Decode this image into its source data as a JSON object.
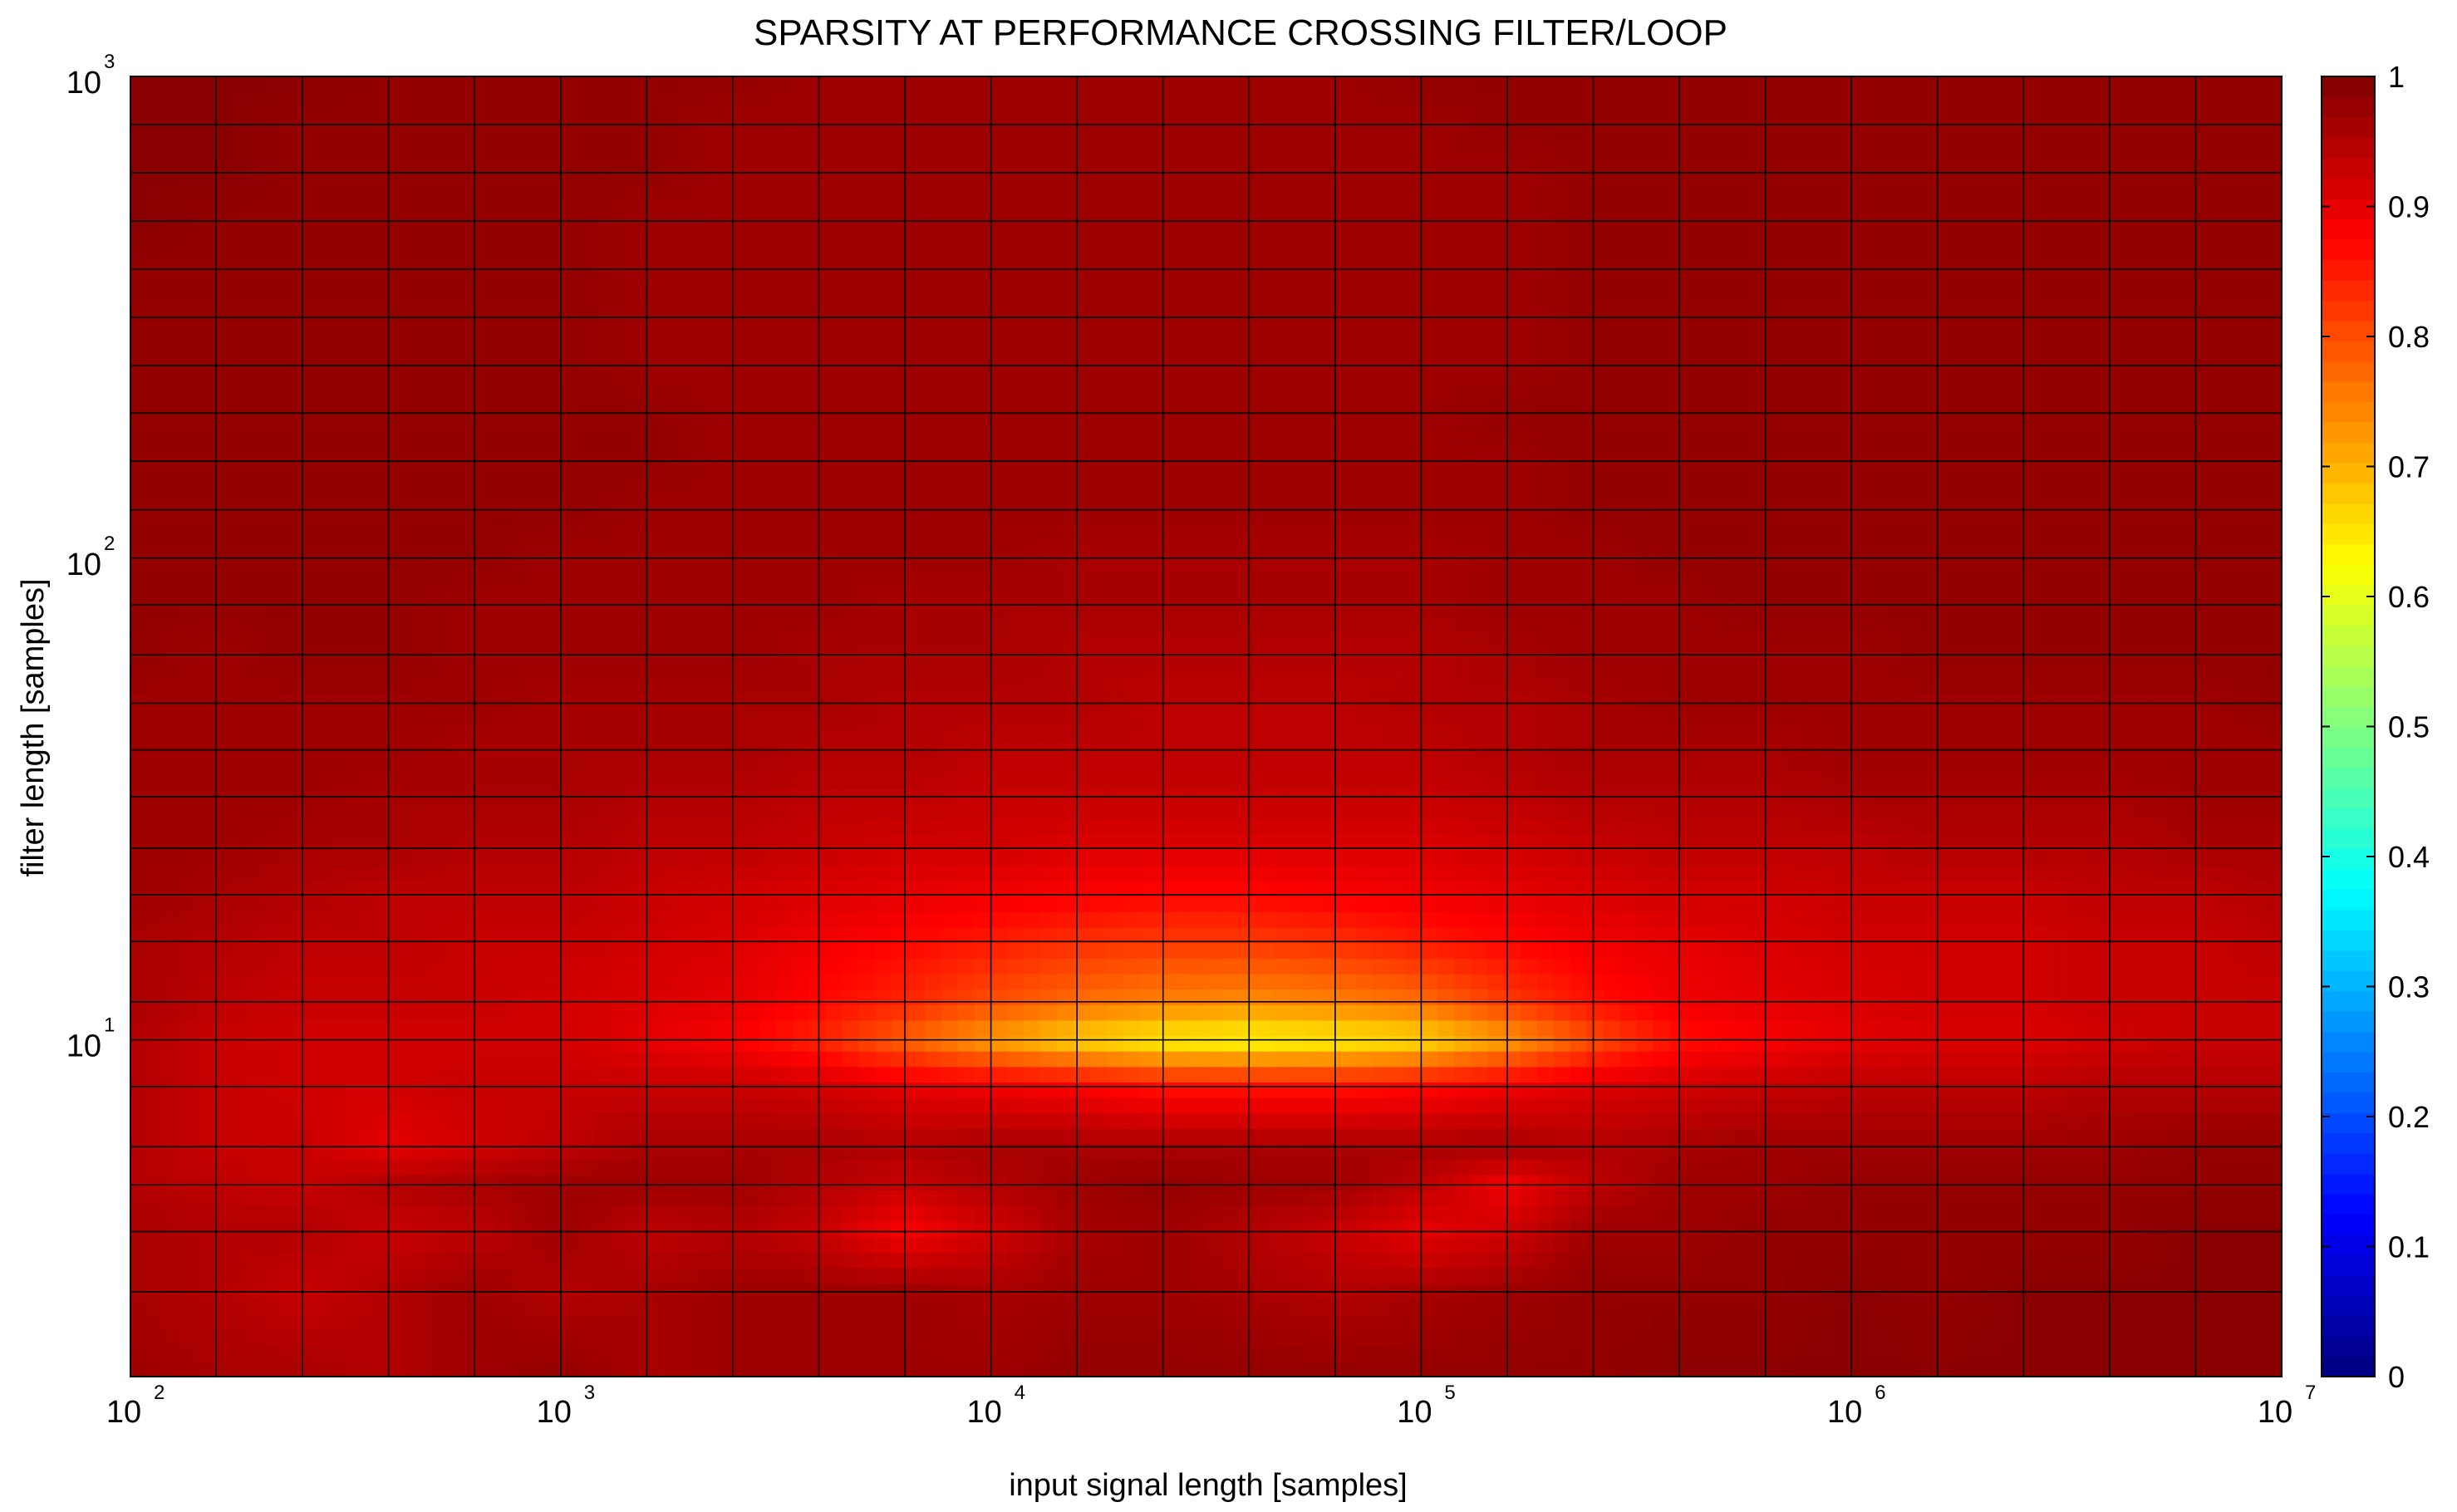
{
  "chart_data": {
    "type": "heatmap",
    "title": "SPARSITY AT PERFORMANCE CROSSING FILTER/LOOP",
    "xlabel": "input signal length [samples]",
    "ylabel": "filter length [samples]",
    "x_scale": "log",
    "y_scale": "log",
    "xlim": [
      100,
      10000000
    ],
    "ylim": [
      2,
      1000
    ],
    "grid": true,
    "colormap": "jet",
    "colorbar": {
      "placement": "right",
      "range": [
        0,
        1
      ],
      "ticks": [
        "0",
        "0.1",
        "0.2",
        "0.3",
        "0.4",
        "0.5",
        "0.6",
        "0.7",
        "0.8",
        "0.9",
        "1"
      ]
    },
    "x_ticks": [
      {
        "base": "10",
        "exp": "2"
      },
      {
        "base": "10",
        "exp": "3"
      },
      {
        "base": "10",
        "exp": "4"
      },
      {
        "base": "10",
        "exp": "5"
      },
      {
        "base": "10",
        "exp": "6"
      },
      {
        "base": "10",
        "exp": "7"
      }
    ],
    "y_ticks": [
      {
        "base": "10",
        "exp": "1",
        "value": 10
      },
      {
        "base": "10",
        "exp": "2",
        "value": 100
      },
      {
        "base": "10",
        "exp": "3",
        "value": 1000
      }
    ],
    "x": [
      100,
      158,
      251,
      398,
      631,
      1000,
      1585,
      2512,
      3981,
      6310,
      10000,
      15849,
      25119,
      39811,
      63096,
      100000,
      158489,
      251189,
      398107,
      630957,
      1000000,
      1584893,
      2511886,
      3981072,
      6309573,
      10000000
    ],
    "y": [
      2,
      3,
      4,
      5,
      6,
      8,
      10,
      12,
      16,
      20,
      25,
      32,
      40,
      50,
      63,
      80,
      100,
      126,
      159,
      200,
      251,
      316,
      398,
      501,
      631,
      794,
      1000
    ],
    "z": [
      [
        0.97,
        0.96,
        0.96,
        0.95,
        0.97,
        0.98,
        0.96,
        0.97,
        0.97,
        0.97,
        0.97,
        0.98,
        0.98,
        0.98,
        0.98,
        0.98,
        0.98,
        0.98,
        0.99,
        0.99,
        0.99,
        0.99,
        0.99,
        0.99,
        0.99,
        0.99
      ],
      [
        0.96,
        0.95,
        0.93,
        0.95,
        0.97,
        0.95,
        0.96,
        0.97,
        0.97,
        0.97,
        0.96,
        0.97,
        0.97,
        0.96,
        0.95,
        0.96,
        0.97,
        0.98,
        0.98,
        0.98,
        0.99,
        0.98,
        0.99,
        0.99,
        0.99,
        0.99
      ],
      [
        0.96,
        0.95,
        0.95,
        0.93,
        0.94,
        0.97,
        0.94,
        0.95,
        0.93,
        0.88,
        0.92,
        0.96,
        0.97,
        0.95,
        0.93,
        0.9,
        0.92,
        0.97,
        0.97,
        0.98,
        0.98,
        0.98,
        0.98,
        0.98,
        0.99,
        0.99
      ],
      [
        0.95,
        0.94,
        0.93,
        0.95,
        0.96,
        0.97,
        0.97,
        0.97,
        0.95,
        0.93,
        0.95,
        0.97,
        0.98,
        0.97,
        0.97,
        0.94,
        0.89,
        0.94,
        0.97,
        0.97,
        0.98,
        0.98,
        0.98,
        0.98,
        0.98,
        0.98
      ],
      [
        0.95,
        0.93,
        0.93,
        0.9,
        0.92,
        0.94,
        0.96,
        0.96,
        0.96,
        0.95,
        0.96,
        0.96,
        0.96,
        0.96,
        0.96,
        0.96,
        0.96,
        0.95,
        0.96,
        0.97,
        0.97,
        0.97,
        0.97,
        0.97,
        0.98,
        0.98
      ],
      [
        0.95,
        0.93,
        0.92,
        0.92,
        0.93,
        0.93,
        0.93,
        0.93,
        0.92,
        0.9,
        0.89,
        0.88,
        0.86,
        0.86,
        0.86,
        0.87,
        0.89,
        0.91,
        0.92,
        0.93,
        0.94,
        0.94,
        0.94,
        0.95,
        0.95,
        0.95
      ],
      [
        0.95,
        0.93,
        0.92,
        0.92,
        0.92,
        0.92,
        0.9,
        0.88,
        0.84,
        0.78,
        0.72,
        0.67,
        0.64,
        0.63,
        0.64,
        0.66,
        0.72,
        0.8,
        0.86,
        0.88,
        0.9,
        0.91,
        0.91,
        0.92,
        0.93,
        0.93
      ],
      [
        0.96,
        0.94,
        0.93,
        0.93,
        0.93,
        0.92,
        0.91,
        0.9,
        0.87,
        0.84,
        0.8,
        0.77,
        0.75,
        0.74,
        0.75,
        0.77,
        0.82,
        0.86,
        0.89,
        0.9,
        0.91,
        0.92,
        0.92,
        0.93,
        0.93,
        0.93
      ],
      [
        0.96,
        0.95,
        0.94,
        0.94,
        0.93,
        0.93,
        0.92,
        0.91,
        0.89,
        0.87,
        0.85,
        0.83,
        0.82,
        0.82,
        0.83,
        0.85,
        0.87,
        0.89,
        0.9,
        0.91,
        0.92,
        0.92,
        0.92,
        0.93,
        0.93,
        0.94
      ],
      [
        0.97,
        0.96,
        0.95,
        0.94,
        0.94,
        0.94,
        0.93,
        0.92,
        0.91,
        0.9,
        0.89,
        0.88,
        0.87,
        0.87,
        0.88,
        0.89,
        0.9,
        0.91,
        0.92,
        0.92,
        0.93,
        0.93,
        0.93,
        0.94,
        0.94,
        0.95
      ],
      [
        0.97,
        0.97,
        0.96,
        0.96,
        0.95,
        0.95,
        0.94,
        0.94,
        0.93,
        0.92,
        0.92,
        0.91,
        0.91,
        0.91,
        0.91,
        0.91,
        0.92,
        0.93,
        0.94,
        0.94,
        0.94,
        0.95,
        0.95,
        0.95,
        0.96,
        0.96
      ],
      [
        0.97,
        0.97,
        0.97,
        0.96,
        0.96,
        0.96,
        0.95,
        0.95,
        0.94,
        0.94,
        0.93,
        0.93,
        0.93,
        0.93,
        0.93,
        0.93,
        0.94,
        0.95,
        0.95,
        0.95,
        0.96,
        0.96,
        0.96,
        0.96,
        0.97,
        0.97
      ],
      [
        0.97,
        0.97,
        0.97,
        0.97,
        0.96,
        0.96,
        0.96,
        0.96,
        0.95,
        0.95,
        0.94,
        0.94,
        0.94,
        0.94,
        0.94,
        0.94,
        0.95,
        0.96,
        0.96,
        0.96,
        0.97,
        0.97,
        0.97,
        0.97,
        0.97,
        0.97
      ],
      [
        0.97,
        0.97,
        0.97,
        0.97,
        0.97,
        0.96,
        0.96,
        0.96,
        0.96,
        0.95,
        0.95,
        0.95,
        0.94,
        0.94,
        0.94,
        0.95,
        0.95,
        0.96,
        0.97,
        0.97,
        0.97,
        0.97,
        0.97,
        0.97,
        0.97,
        0.98
      ],
      [
        0.98,
        0.97,
        0.98,
        0.98,
        0.97,
        0.97,
        0.97,
        0.97,
        0.96,
        0.96,
        0.96,
        0.95,
        0.95,
        0.95,
        0.95,
        0.95,
        0.96,
        0.97,
        0.97,
        0.97,
        0.97,
        0.98,
        0.98,
        0.98,
        0.98,
        0.98
      ],
      [
        0.98,
        0.98,
        0.98,
        0.98,
        0.97,
        0.97,
        0.97,
        0.97,
        0.97,
        0.96,
        0.96,
        0.96,
        0.96,
        0.96,
        0.96,
        0.96,
        0.97,
        0.97,
        0.97,
        0.98,
        0.98,
        0.98,
        0.98,
        0.98,
        0.98,
        0.98
      ],
      [
        0.98,
        0.98,
        0.98,
        0.98,
        0.98,
        0.97,
        0.97,
        0.97,
        0.97,
        0.97,
        0.97,
        0.96,
        0.96,
        0.96,
        0.96,
        0.96,
        0.97,
        0.97,
        0.98,
        0.98,
        0.98,
        0.98,
        0.98,
        0.98,
        0.98,
        0.98
      ],
      [
        0.98,
        0.98,
        0.98,
        0.98,
        0.98,
        0.98,
        0.97,
        0.97,
        0.97,
        0.97,
        0.97,
        0.97,
        0.97,
        0.97,
        0.97,
        0.97,
        0.97,
        0.98,
        0.98,
        0.98,
        0.98,
        0.98,
        0.98,
        0.98,
        0.98,
        0.98
      ],
      [
        0.98,
        0.98,
        0.98,
        0.98,
        0.98,
        0.98,
        0.98,
        0.97,
        0.97,
        0.97,
        0.97,
        0.97,
        0.97,
        0.97,
        0.97,
        0.97,
        0.97,
        0.98,
        0.98,
        0.98,
        0.98,
        0.98,
        0.98,
        0.98,
        0.98,
        0.98
      ],
      [
        0.98,
        0.98,
        0.98,
        0.98,
        0.98,
        0.98,
        0.98,
        0.97,
        0.97,
        0.97,
        0.97,
        0.97,
        0.97,
        0.97,
        0.97,
        0.97,
        0.98,
        0.98,
        0.98,
        0.98,
        0.98,
        0.98,
        0.98,
        0.98,
        0.98,
        0.98
      ],
      [
        0.98,
        0.98,
        0.98,
        0.98,
        0.98,
        0.98,
        0.97,
        0.97,
        0.97,
        0.97,
        0.97,
        0.97,
        0.97,
        0.97,
        0.97,
        0.97,
        0.97,
        0.98,
        0.98,
        0.98,
        0.98,
        0.98,
        0.98,
        0.98,
        0.98,
        0.98
      ],
      [
        0.98,
        0.98,
        0.98,
        0.98,
        0.98,
        0.98,
        0.97,
        0.97,
        0.97,
        0.97,
        0.97,
        0.97,
        0.97,
        0.97,
        0.97,
        0.97,
        0.97,
        0.98,
        0.98,
        0.98,
        0.98,
        0.98,
        0.98,
        0.98,
        0.98,
        0.98
      ],
      [
        0.98,
        0.98,
        0.98,
        0.98,
        0.98,
        0.98,
        0.97,
        0.97,
        0.97,
        0.97,
        0.97,
        0.97,
        0.97,
        0.97,
        0.97,
        0.97,
        0.97,
        0.98,
        0.98,
        0.98,
        0.98,
        0.98,
        0.98,
        0.98,
        0.98,
        0.98
      ],
      [
        0.99,
        0.98,
        0.98,
        0.98,
        0.98,
        0.98,
        0.97,
        0.97,
        0.97,
        0.97,
        0.97,
        0.97,
        0.97,
        0.97,
        0.97,
        0.97,
        0.97,
        0.98,
        0.98,
        0.98,
        0.98,
        0.98,
        0.98,
        0.98,
        0.98,
        0.98
      ],
      [
        0.99,
        0.99,
        0.98,
        0.98,
        0.98,
        0.98,
        0.98,
        0.97,
        0.97,
        0.97,
        0.97,
        0.97,
        0.97,
        0.97,
        0.97,
        0.97,
        0.97,
        0.98,
        0.98,
        0.98,
        0.98,
        0.98,
        0.98,
        0.98,
        0.98,
        0.98
      ],
      [
        0.99,
        0.99,
        0.98,
        0.98,
        0.98,
        0.98,
        0.98,
        0.97,
        0.97,
        0.97,
        0.97,
        0.97,
        0.97,
        0.97,
        0.97,
        0.97,
        0.98,
        0.98,
        0.98,
        0.98,
        0.98,
        0.98,
        0.98,
        0.98,
        0.98,
        0.98
      ],
      [
        0.99,
        0.99,
        0.99,
        0.98,
        0.98,
        0.98,
        0.98,
        0.98,
        0.97,
        0.97,
        0.97,
        0.97,
        0.97,
        0.97,
        0.97,
        0.98,
        0.98,
        0.98,
        0.98,
        0.98,
        0.98,
        0.98,
        0.98,
        0.98,
        0.98,
        0.98
      ]
    ]
  }
}
